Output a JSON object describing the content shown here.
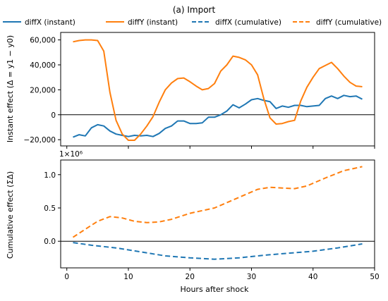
{
  "chart_data": {
    "type": "line",
    "title": "(a) Import",
    "legend": {
      "placement": "top",
      "entries": [
        {
          "label": "diffX (instant)",
          "color": "#1f77b4",
          "style": "solid"
        },
        {
          "label": "diffY (instant)",
          "color": "#ff7f0e",
          "style": "solid"
        },
        {
          "label": "diffX (cumulative)",
          "color": "#1f77b4",
          "style": "dashed"
        },
        {
          "label": "diffY (cumulative)",
          "color": "#ff7f0e",
          "style": "dashed"
        }
      ]
    },
    "xlabel": "Hours after shock",
    "xlim": [
      -1,
      50
    ],
    "xticks": [
      0,
      10,
      20,
      30,
      40,
      50
    ],
    "xtick_labels": [
      "0",
      "10",
      "20",
      "30",
      "40",
      "50"
    ],
    "panels": [
      {
        "ylabel": "Instant effect (Δ = y1 − y0)",
        "ylim": [
          -25000,
          66000
        ],
        "yticks": [
          -20000,
          0,
          20000,
          40000,
          60000
        ],
        "ytick_labels": [
          "−20,000",
          "0",
          "20,000",
          "40,000",
          "60,000"
        ],
        "zero_line": true,
        "series": [
          {
            "name": "diffX (instant)",
            "color": "#1f77b4",
            "style": "solid",
            "x": [
              1,
              2,
              3,
              4,
              5,
              6,
              7,
              8,
              9,
              10,
              11,
              12,
              13,
              14,
              15,
              16,
              17,
              18,
              19,
              20,
              21,
              22,
              23,
              24,
              25,
              26,
              27,
              28,
              29,
              30,
              31,
              32,
              33,
              34,
              35,
              36,
              37,
              38,
              39,
              40,
              41,
              42,
              43,
              44,
              45,
              46,
              47,
              48
            ],
            "y": [
              -18000,
              -16000,
              -17000,
              -10500,
              -8000,
              -9000,
              -13000,
              -15500,
              -16500,
              -17500,
              -16500,
              -17000,
              -16500,
              -17500,
              -15000,
              -11000,
              -9000,
              -5000,
              -5000,
              -7000,
              -7000,
              -6500,
              -2000,
              -2000,
              0,
              3000,
              8000,
              5500,
              8500,
              12000,
              13000,
              11500,
              10500,
              5000,
              7000,
              6000,
              7500,
              7500,
              6500,
              7000,
              7500,
              13000,
              15000,
              13000,
              15500,
              14500,
              15000,
              12500
            ]
          },
          {
            "name": "diffY (instant)",
            "color": "#ff7f0e",
            "style": "solid",
            "x": [
              1,
              2,
              3,
              4,
              5,
              6,
              7,
              8,
              9,
              10,
              11,
              12,
              13,
              14,
              15,
              16,
              17,
              18,
              19,
              20,
              21,
              22,
              23,
              24,
              25,
              26,
              27,
              28,
              29,
              30,
              31,
              32,
              33,
              34,
              35,
              36,
              37,
              38,
              39,
              40,
              41,
              42,
              43,
              44,
              45,
              46,
              47,
              48
            ],
            "y": [
              58500,
              59500,
              60000,
              60000,
              59500,
              51000,
              18000,
              -4500,
              -15500,
              -20500,
              -20500,
              -15500,
              -9000,
              -1500,
              10000,
              20000,
              25500,
              29000,
              29500,
              26500,
              23000,
              20000,
              21000,
              25000,
              35000,
              40000,
              47000,
              46000,
              44000,
              40000,
              32000,
              13000,
              -2500,
              -7500,
              -7000,
              -5500,
              -4500,
              11000,
              22000,
              30000,
              37000,
              39500,
              42000,
              37000,
              31000,
              26000,
              23000,
              22500
            ]
          }
        ]
      },
      {
        "ylabel": "Cumulative effect (ΣΔ)",
        "scale_label": "1×10⁶",
        "ylim": [
          -0.4,
          1.22
        ],
        "yticks": [
          0.0,
          0.5,
          1.0
        ],
        "ytick_labels": [
          "0.0",
          "0.5",
          "1.0"
        ],
        "zero_line": true,
        "series": [
          {
            "name": "diffX (cumulative)",
            "color": "#1f77b4",
            "style": "dashed",
            "x": [
              1,
              4,
              8,
              12,
              16,
              20,
              24,
              28,
              32,
              36,
              40,
              44,
              48
            ],
            "y": [
              -0.02,
              -0.06,
              -0.1,
              -0.16,
              -0.22,
              -0.25,
              -0.27,
              -0.25,
              -0.21,
              -0.18,
              -0.15,
              -0.1,
              -0.04
            ]
          },
          {
            "name": "diffY (cumulative)",
            "color": "#ff7f0e",
            "style": "dashed",
            "x": [
              1,
              3,
              5,
              7,
              9,
              11,
              13,
              15,
              17,
              20,
              24,
              28,
              31,
              33,
              35,
              37,
              39,
              42,
              45,
              48
            ],
            "y": [
              0.06,
              0.18,
              0.3,
              0.37,
              0.35,
              0.3,
              0.28,
              0.29,
              0.33,
              0.42,
              0.5,
              0.66,
              0.78,
              0.81,
              0.8,
              0.79,
              0.83,
              0.95,
              1.06,
              1.12
            ]
          }
        ]
      }
    ]
  }
}
